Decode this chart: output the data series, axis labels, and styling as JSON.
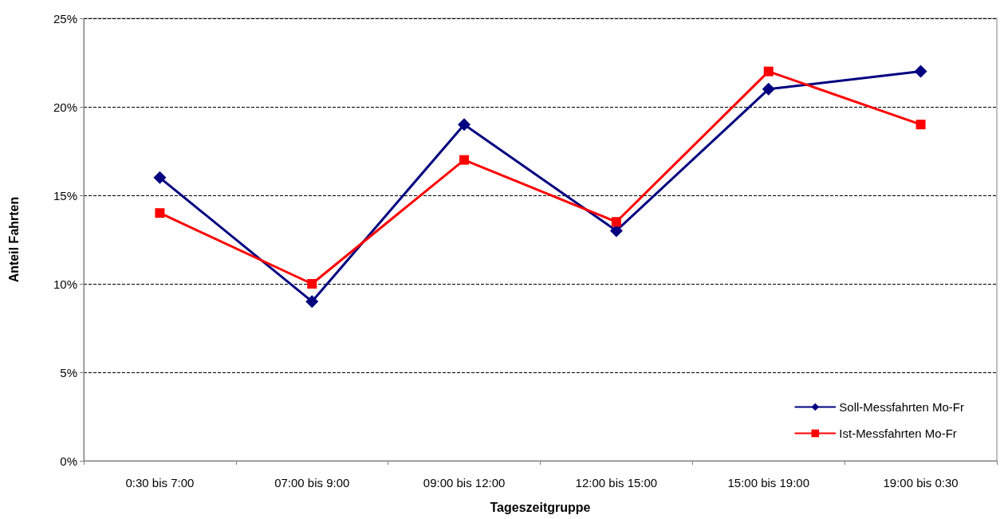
{
  "chart_data": {
    "type": "line",
    "xlabel": "Tageszeitgruppe",
    "ylabel": "Anteil Fahrten",
    "categories": [
      "0:30 bis 7:00",
      "07:00 bis 9:00",
      "09:00 bis 12:00",
      "12:00 bis 15:00",
      "15:00 bis 19:00",
      "19:00 bis 0:30"
    ],
    "series": [
      {
        "name": "Soll-Messfahrten Mo-Fr",
        "color": "#000080",
        "marker": "diamond",
        "values": [
          16,
          9,
          19,
          13,
          21,
          22
        ]
      },
      {
        "name": "Ist-Messfahrten Mo-Fr",
        "color": "#ff0000",
        "marker": "square",
        "values": [
          14,
          10,
          17,
          13.5,
          22,
          19
        ]
      }
    ],
    "ylim": [
      0,
      25
    ],
    "yticks": [
      {
        "value": 0,
        "label": "0%"
      },
      {
        "value": 5,
        "label": "5%"
      },
      {
        "value": 10,
        "label": "10%"
      },
      {
        "value": 15,
        "label": "15%"
      },
      {
        "value": 20,
        "label": "20%"
      },
      {
        "value": 25,
        "label": "25%"
      }
    ],
    "grid": "y",
    "legend": "bottom right",
    "line_style": "solid"
  }
}
